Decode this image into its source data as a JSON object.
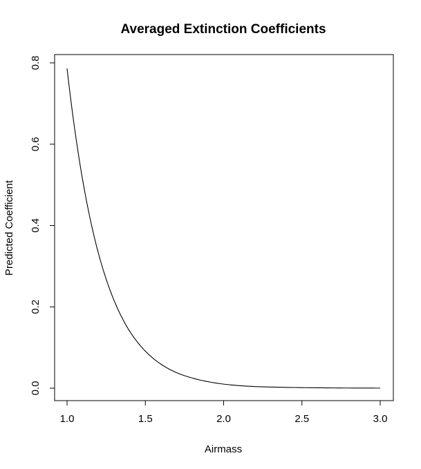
{
  "chart_data": {
    "type": "line",
    "title": "Averaged Extinction Coefficients",
    "xlabel": "Airmass",
    "ylabel": "Predicted Coefficient",
    "xlim": [
      1.0,
      3.0
    ],
    "ylim": [
      0.0,
      0.8
    ],
    "xticks": [
      "1.0",
      "1.5",
      "2.0",
      "2.5",
      "3.0"
    ],
    "yticks": [
      "0.0",
      "0.2",
      "0.4",
      "0.6",
      "0.8"
    ],
    "grid": false,
    "series": [
      {
        "color": "#000000",
        "x": [
          1.0,
          1.05,
          1.1,
          1.15,
          1.2,
          1.25,
          1.3,
          1.35,
          1.4,
          1.45,
          1.5,
          1.6,
          1.7,
          1.8,
          1.9,
          2.0,
          2.2,
          2.4,
          2.6,
          2.8,
          3.0
        ],
        "y": [
          0.786,
          0.634,
          0.511,
          0.412,
          0.332,
          0.268,
          0.216,
          0.174,
          0.14,
          0.113,
          0.091,
          0.059,
          0.038,
          0.025,
          0.016,
          0.01,
          0.004,
          0.002,
          0.001,
          0.0004,
          0.0002
        ]
      }
    ]
  }
}
